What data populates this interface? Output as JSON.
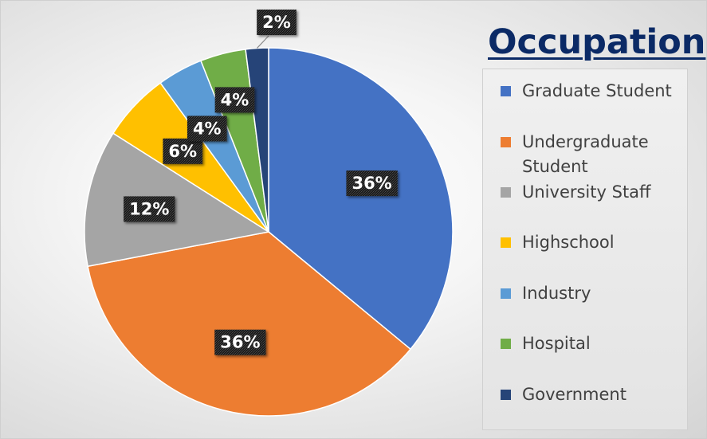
{
  "chart_data": {
    "type": "pie",
    "title": "Occupation",
    "categories": [
      "Graduate Student",
      "Undergraduate Student",
      "University Staff",
      "Highschool",
      "Industry",
      "Hospital",
      "Government"
    ],
    "values": [
      36,
      36,
      12,
      6,
      4,
      4,
      2
    ],
    "labels": [
      "36%",
      "36%",
      "12%",
      "6%",
      "4%",
      "4%",
      "2%"
    ],
    "colors": [
      "#4472C4",
      "#ED7D31",
      "#A5A5A5",
      "#FFC000",
      "#5B9BD5",
      "#70AD47",
      "#264478"
    ],
    "legend_placement": "right",
    "legend_lines": [
      [
        "Graduate Student"
      ],
      [
        "Undergraduate",
        "Student"
      ],
      [
        "University Staff"
      ],
      [
        "Highschool"
      ],
      [
        "Industry"
      ],
      [
        "Hospital"
      ],
      [
        "Government"
      ]
    ]
  }
}
